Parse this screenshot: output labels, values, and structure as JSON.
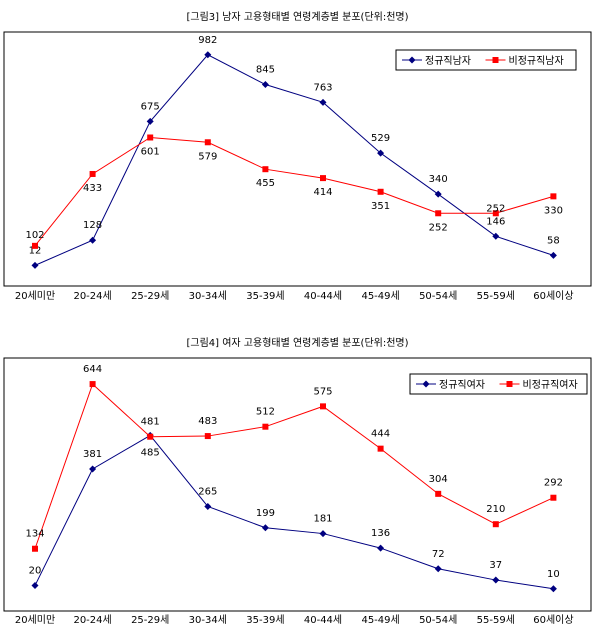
{
  "chart_data": [
    {
      "type": "line",
      "title": "[그림3] 남자 고용형태별 연령계층별 분포(단위:천명)",
      "categories": [
        "20세미만",
        "20-24세",
        "25-29세",
        "30-34세",
        "35-39세",
        "40-44세",
        "45-49세",
        "50-54세",
        "55-59세",
        "60세이상"
      ],
      "series": [
        {
          "name": "정규직남자",
          "color": "#000080",
          "marker": "diamond",
          "values": [
            12,
            128,
            675,
            982,
            845,
            763,
            529,
            340,
            146,
            58
          ]
        },
        {
          "name": "비정규직남자",
          "color": "#ff0000",
          "marker": "square",
          "values": [
            102,
            433,
            601,
            579,
            455,
            414,
            351,
            252,
            252,
            330
          ]
        }
      ],
      "ylim": [
        0,
        1050
      ],
      "legend": "top-right",
      "grid": false
    },
    {
      "type": "line",
      "title": "[그림4] 여자 고용형태별 연령계층별 분포(단위:천명)",
      "categories": [
        "20세미만",
        "20-24세",
        "25-29세",
        "30-34세",
        "35-39세",
        "40-44세",
        "45-49세",
        "50-54세",
        "55-59세",
        "60세이상"
      ],
      "series": [
        {
          "name": "정규직여자",
          "color": "#000080",
          "marker": "diamond",
          "values": [
            20,
            381,
            485,
            265,
            199,
            181,
            136,
            72,
            37,
            10
          ]
        },
        {
          "name": "비정규직여자",
          "color": "#ff0000",
          "marker": "square",
          "values": [
            134,
            644,
            481,
            483,
            512,
            575,
            444,
            304,
            210,
            292
          ]
        }
      ],
      "ylim": [
        0,
        700
      ],
      "legend": "top-right",
      "grid": false
    }
  ]
}
